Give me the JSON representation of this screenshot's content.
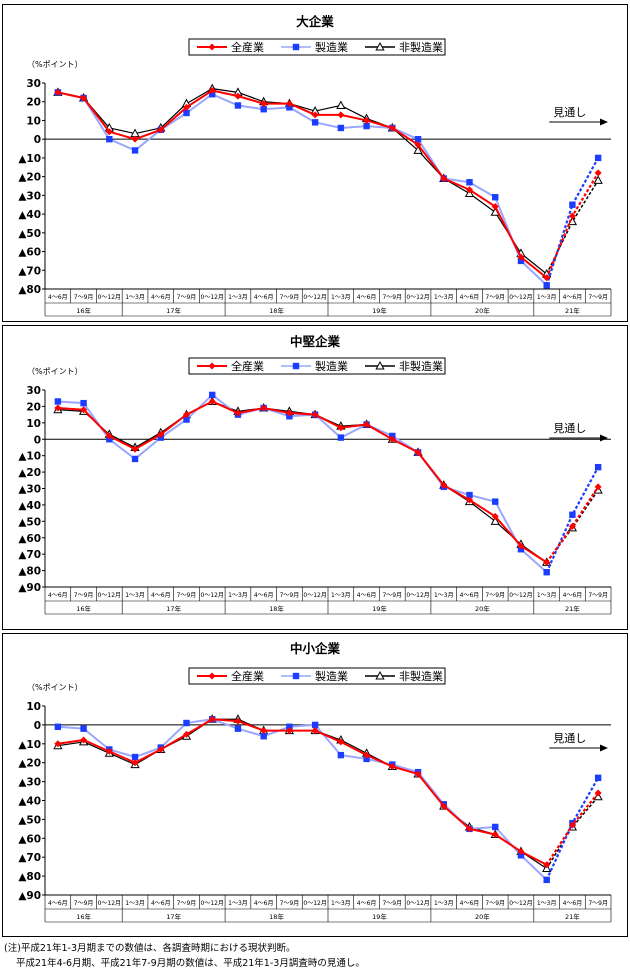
{
  "legend": [
    "全産業",
    "製造業",
    "非製造業"
  ],
  "colors": {
    "all": "#ff0000",
    "mfg": "#1a3dff",
    "nonmfg": "#000000",
    "mfg_line": "#9aa6ff"
  },
  "periods": [
    "4～6月",
    "7～9月",
    "0～12月",
    "1～3月",
    "4～6月",
    "7～9月",
    "0～12月",
    "1～3月",
    "4～6月",
    "7～9月",
    "0～12月",
    "1～3月",
    "4～6月",
    "7～9月",
    "0～12月",
    "1～3月",
    "4～6月",
    "7～9月",
    "0～12月",
    "1～3月",
    "4～6月",
    "7～9月"
  ],
  "years": [
    {
      "label": "16年",
      "start": 0,
      "end": 2
    },
    {
      "label": "17年",
      "start": 3,
      "end": 6
    },
    {
      "label": "18年",
      "start": 7,
      "end": 10
    },
    {
      "label": "19年",
      "start": 11,
      "end": 14
    },
    {
      "label": "20年",
      "start": 15,
      "end": 18
    },
    {
      "label": "21年",
      "start": 19,
      "end": 21
    }
  ],
  "forecast_label": "見通し",
  "note_line1": "(注)平成21年1-3月期までの数値は、各調査時期における現状判断。",
  "note_line2": "平成21年4-6月期、平成21年7-9月期の数値は、平成21年1-3月調査時の見通し。",
  "chart_data": [
    {
      "type": "line",
      "title": "大企業",
      "ylabel": "（%ポイント）",
      "ylim": [
        -80,
        30
      ],
      "yticks": [
        {
          "v": 30,
          "label": "30"
        },
        {
          "v": 20,
          "label": "20"
        },
        {
          "v": 10,
          "label": "10"
        },
        {
          "v": 0,
          "label": "0"
        },
        {
          "v": -10,
          "label": "▲10"
        },
        {
          "v": -20,
          "label": "▲20"
        },
        {
          "v": -30,
          "label": "▲30"
        },
        {
          "v": -40,
          "label": "▲40"
        },
        {
          "v": -50,
          "label": "▲50"
        },
        {
          "v": -60,
          "label": "▲60"
        },
        {
          "v": -70,
          "label": "▲70"
        },
        {
          "v": -80,
          "label": "▲80"
        }
      ],
      "series": [
        {
          "name": "全産業",
          "values": [
            25,
            22,
            4,
            0,
            5,
            17,
            26,
            23,
            19,
            19,
            13,
            13,
            10,
            6,
            -3,
            -21,
            -27,
            -36,
            -63,
            -74,
            -41,
            -18
          ]
        },
        {
          "name": "製造業",
          "values": [
            25,
            22,
            0,
            -6,
            5,
            14,
            24,
            18,
            16,
            17,
            9,
            6,
            7,
            6,
            0,
            -21,
            -23,
            -31,
            -65,
            -78,
            -35,
            -10
          ]
        },
        {
          "name": "非製造業",
          "values": [
            25,
            22,
            6,
            3,
            6,
            19,
            27,
            25,
            20,
            19,
            15,
            18,
            11,
            6,
            -6,
            -21,
            -29,
            -39,
            -61,
            -72,
            -44,
            -22
          ]
        }
      ]
    },
    {
      "type": "line",
      "title": "中堅企業",
      "ylabel": "（%ポイント）",
      "ylim": [
        -90,
        30
      ],
      "yticks": [
        {
          "v": 30,
          "label": "30"
        },
        {
          "v": 20,
          "label": "20"
        },
        {
          "v": 10,
          "label": "10"
        },
        {
          "v": 0,
          "label": "0"
        },
        {
          "v": -10,
          "label": "▲10"
        },
        {
          "v": -20,
          "label": "▲20"
        },
        {
          "v": -30,
          "label": "▲30"
        },
        {
          "v": -40,
          "label": "▲40"
        },
        {
          "v": -50,
          "label": "▲50"
        },
        {
          "v": -60,
          "label": "▲60"
        },
        {
          "v": -70,
          "label": "▲70"
        },
        {
          "v": -80,
          "label": "▲80"
        },
        {
          "v": -90,
          "label": "▲90"
        }
      ],
      "series": [
        {
          "name": "全産業",
          "values": [
            19,
            18,
            2,
            -6,
            3,
            15,
            23,
            16,
            19,
            16,
            15,
            7,
            9,
            0,
            -8,
            -28,
            -37,
            -47,
            -65,
            -75,
            -53,
            -29
          ]
        },
        {
          "name": "製造業",
          "values": [
            23,
            22,
            0,
            -12,
            1,
            12,
            27,
            15,
            19,
            14,
            15,
            1,
            9,
            2,
            -8,
            -29,
            -34,
            -38,
            -67,
            -81,
            -46,
            -17
          ]
        },
        {
          "name": "非製造業",
          "values": [
            18,
            17,
            3,
            -5,
            4,
            15,
            23,
            17,
            19,
            17,
            15,
            8,
            9,
            0,
            -8,
            -28,
            -38,
            -50,
            -64,
            -75,
            -54,
            -31
          ]
        }
      ]
    },
    {
      "type": "line",
      "title": "中小企業",
      "ylabel": "（%ポイント）",
      "ylim": [
        -90,
        10
      ],
      "yticks": [
        {
          "v": 10,
          "label": "10"
        },
        {
          "v": 0,
          "label": "0"
        },
        {
          "v": -10,
          "label": "▲10"
        },
        {
          "v": -20,
          "label": "▲20"
        },
        {
          "v": -30,
          "label": "▲30"
        },
        {
          "v": -40,
          "label": "▲40"
        },
        {
          "v": -50,
          "label": "▲50"
        },
        {
          "v": -60,
          "label": "▲60"
        },
        {
          "v": -70,
          "label": "▲70"
        },
        {
          "v": -80,
          "label": "▲80"
        },
        {
          "v": -90,
          "label": "▲90"
        }
      ],
      "series": [
        {
          "name": "全産業",
          "values": [
            -10,
            -8,
            -14,
            -20,
            -13,
            -5,
            3,
            2,
            -3,
            -3,
            -3,
            -9,
            -16,
            -22,
            -26,
            -43,
            -55,
            -58,
            -67,
            -74,
            -53,
            -36
          ]
        },
        {
          "name": "製造業",
          "values": [
            -1,
            -2,
            -13,
            -17,
            -12,
            1,
            3,
            -2,
            -6,
            -1,
            0,
            -16,
            -18,
            -21,
            -25,
            -42,
            -55,
            -54,
            -69,
            -82,
            -52,
            -28
          ]
        },
        {
          "name": "非製造業",
          "values": [
            -11,
            -9,
            -15,
            -21,
            -13,
            -6,
            3,
            3,
            -3,
            -3,
            -3,
            -8,
            -15,
            -22,
            -26,
            -43,
            -54,
            -58,
            -67,
            -76,
            -54,
            -38
          ]
        }
      ]
    }
  ]
}
